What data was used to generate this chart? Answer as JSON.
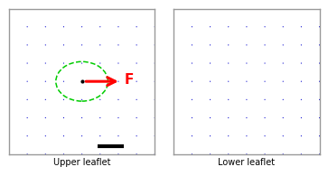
{
  "title_left": "Upper leaflet",
  "title_right": "Lower leaflet",
  "arrow_color": "#0000cc",
  "force_color": "#ff0000",
  "ellipse_color": "#00cc00",
  "background": "#ffffff",
  "border_color": "#999999",
  "scale_bar_color": "#000000",
  "domain": [
    -14,
    14
  ],
  "epsilon": 2.0,
  "scale_bar_nm": 5,
  "grid_n": 9,
  "force_label": "F",
  "figsize": [
    3.69,
    1.92
  ],
  "dpi": 100
}
